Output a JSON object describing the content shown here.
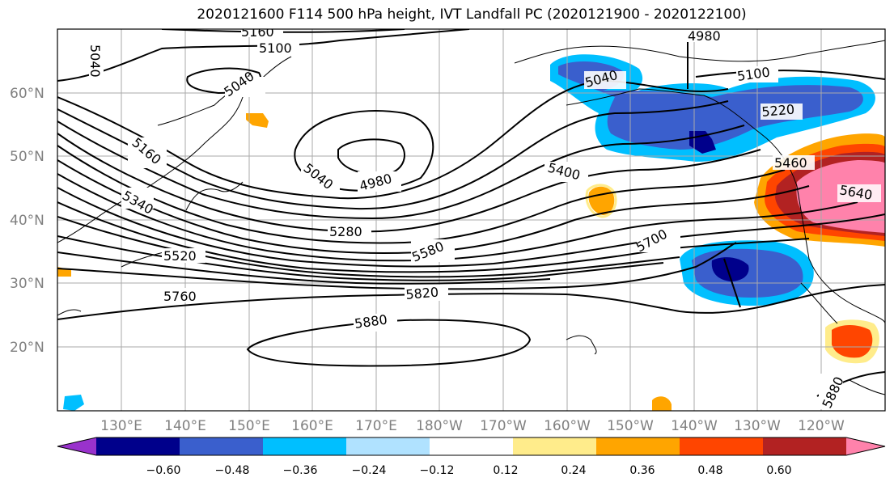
{
  "title": "2020121600 F114 500 hPa height, IVT Landfall PC (2020121900 - 2020122100)",
  "lat_labels": [
    "60°N",
    "50°N",
    "40°N",
    "30°N",
    "20°N"
  ],
  "lon_labels": [
    "130°E",
    "140°E",
    "150°E",
    "160°E",
    "170°E",
    "180°W",
    "170°W",
    "160°W",
    "150°W",
    "140°W",
    "130°W",
    "120°W"
  ],
  "contour_labels": [
    "5160",
    "5100",
    "5040",
    "5040",
    "5040",
    "4980",
    "5160",
    "5340",
    "5280",
    "5520",
    "5760",
    "5580",
    "5820",
    "5880",
    "5400",
    "5700",
    "5040",
    "5100",
    "5220",
    "5460",
    "5640",
    "4980",
    "5880"
  ],
  "colorbar": {
    "ticks": [
      "−0.60",
      "−0.48",
      "−0.36",
      "−0.24",
      "−0.12",
      "0.12",
      "0.24",
      "0.36",
      "0.48",
      "0.60"
    ],
    "colors": [
      "#9932cc",
      "#00008b",
      "#3a5fcd",
      "#00bfff",
      "#b0e2ff",
      "#ffffff",
      "#ffec8b",
      "#ffa500",
      "#ff4500",
      "#b22222",
      "#ff82ab"
    ]
  }
}
